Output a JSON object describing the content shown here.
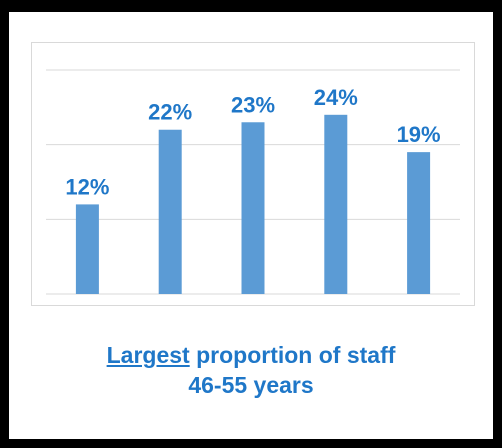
{
  "colors": {
    "bar": "#5b9bd5",
    "label": "#1f77c8",
    "grid": "#d9d9d9",
    "frame": "#000000"
  },
  "chart_data": {
    "type": "bar",
    "categories": [
      "",
      "",
      "",
      "",
      ""
    ],
    "values": [
      12,
      22,
      23,
      24,
      19
    ],
    "value_labels": [
      "12%",
      "22%",
      "23%",
      "24%",
      "19%"
    ],
    "ylim": [
      0,
      30
    ],
    "grid": true
  },
  "caption": {
    "emphasis": "Largest",
    "rest_line1": " proportion of staff",
    "line2": "46-55 years"
  }
}
